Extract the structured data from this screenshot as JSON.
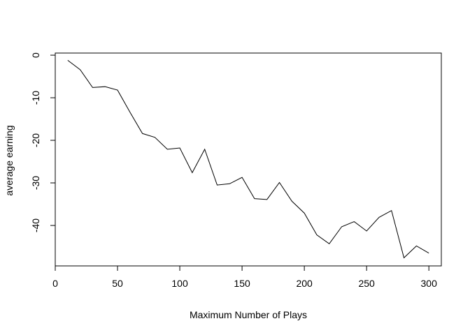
{
  "chart_data": {
    "type": "line",
    "title": "",
    "xlabel": "Maximum Number of Plays",
    "ylabel": "average earning",
    "xlim": [
      0,
      310
    ],
    "ylim": [
      -49.5,
      0.5
    ],
    "xticks": [
      0,
      50,
      100,
      150,
      200,
      250,
      300
    ],
    "yticks": [
      0,
      -10,
      -20,
      -30,
      -40
    ],
    "grid": false,
    "line_color": "#000000",
    "x": [
      10,
      20,
      30,
      40,
      50,
      60,
      70,
      80,
      90,
      100,
      110,
      120,
      130,
      140,
      150,
      160,
      170,
      180,
      190,
      200,
      210,
      220,
      230,
      240,
      250,
      260,
      270,
      280,
      290,
      300
    ],
    "y": [
      -1.2,
      -3.4,
      -7.6,
      -7.4,
      -8.2,
      -13.4,
      -18.4,
      -19.3,
      -22.1,
      -21.8,
      -27.6,
      -22.1,
      -30.5,
      -30.2,
      -28.7,
      -33.7,
      -33.9,
      -29.9,
      -34.3,
      -37.1,
      -42.2,
      -44.3,
      -40.3,
      -39.1,
      -41.3,
      -38.1,
      -36.5,
      -47.6,
      -44.8,
      -46.5
    ]
  }
}
